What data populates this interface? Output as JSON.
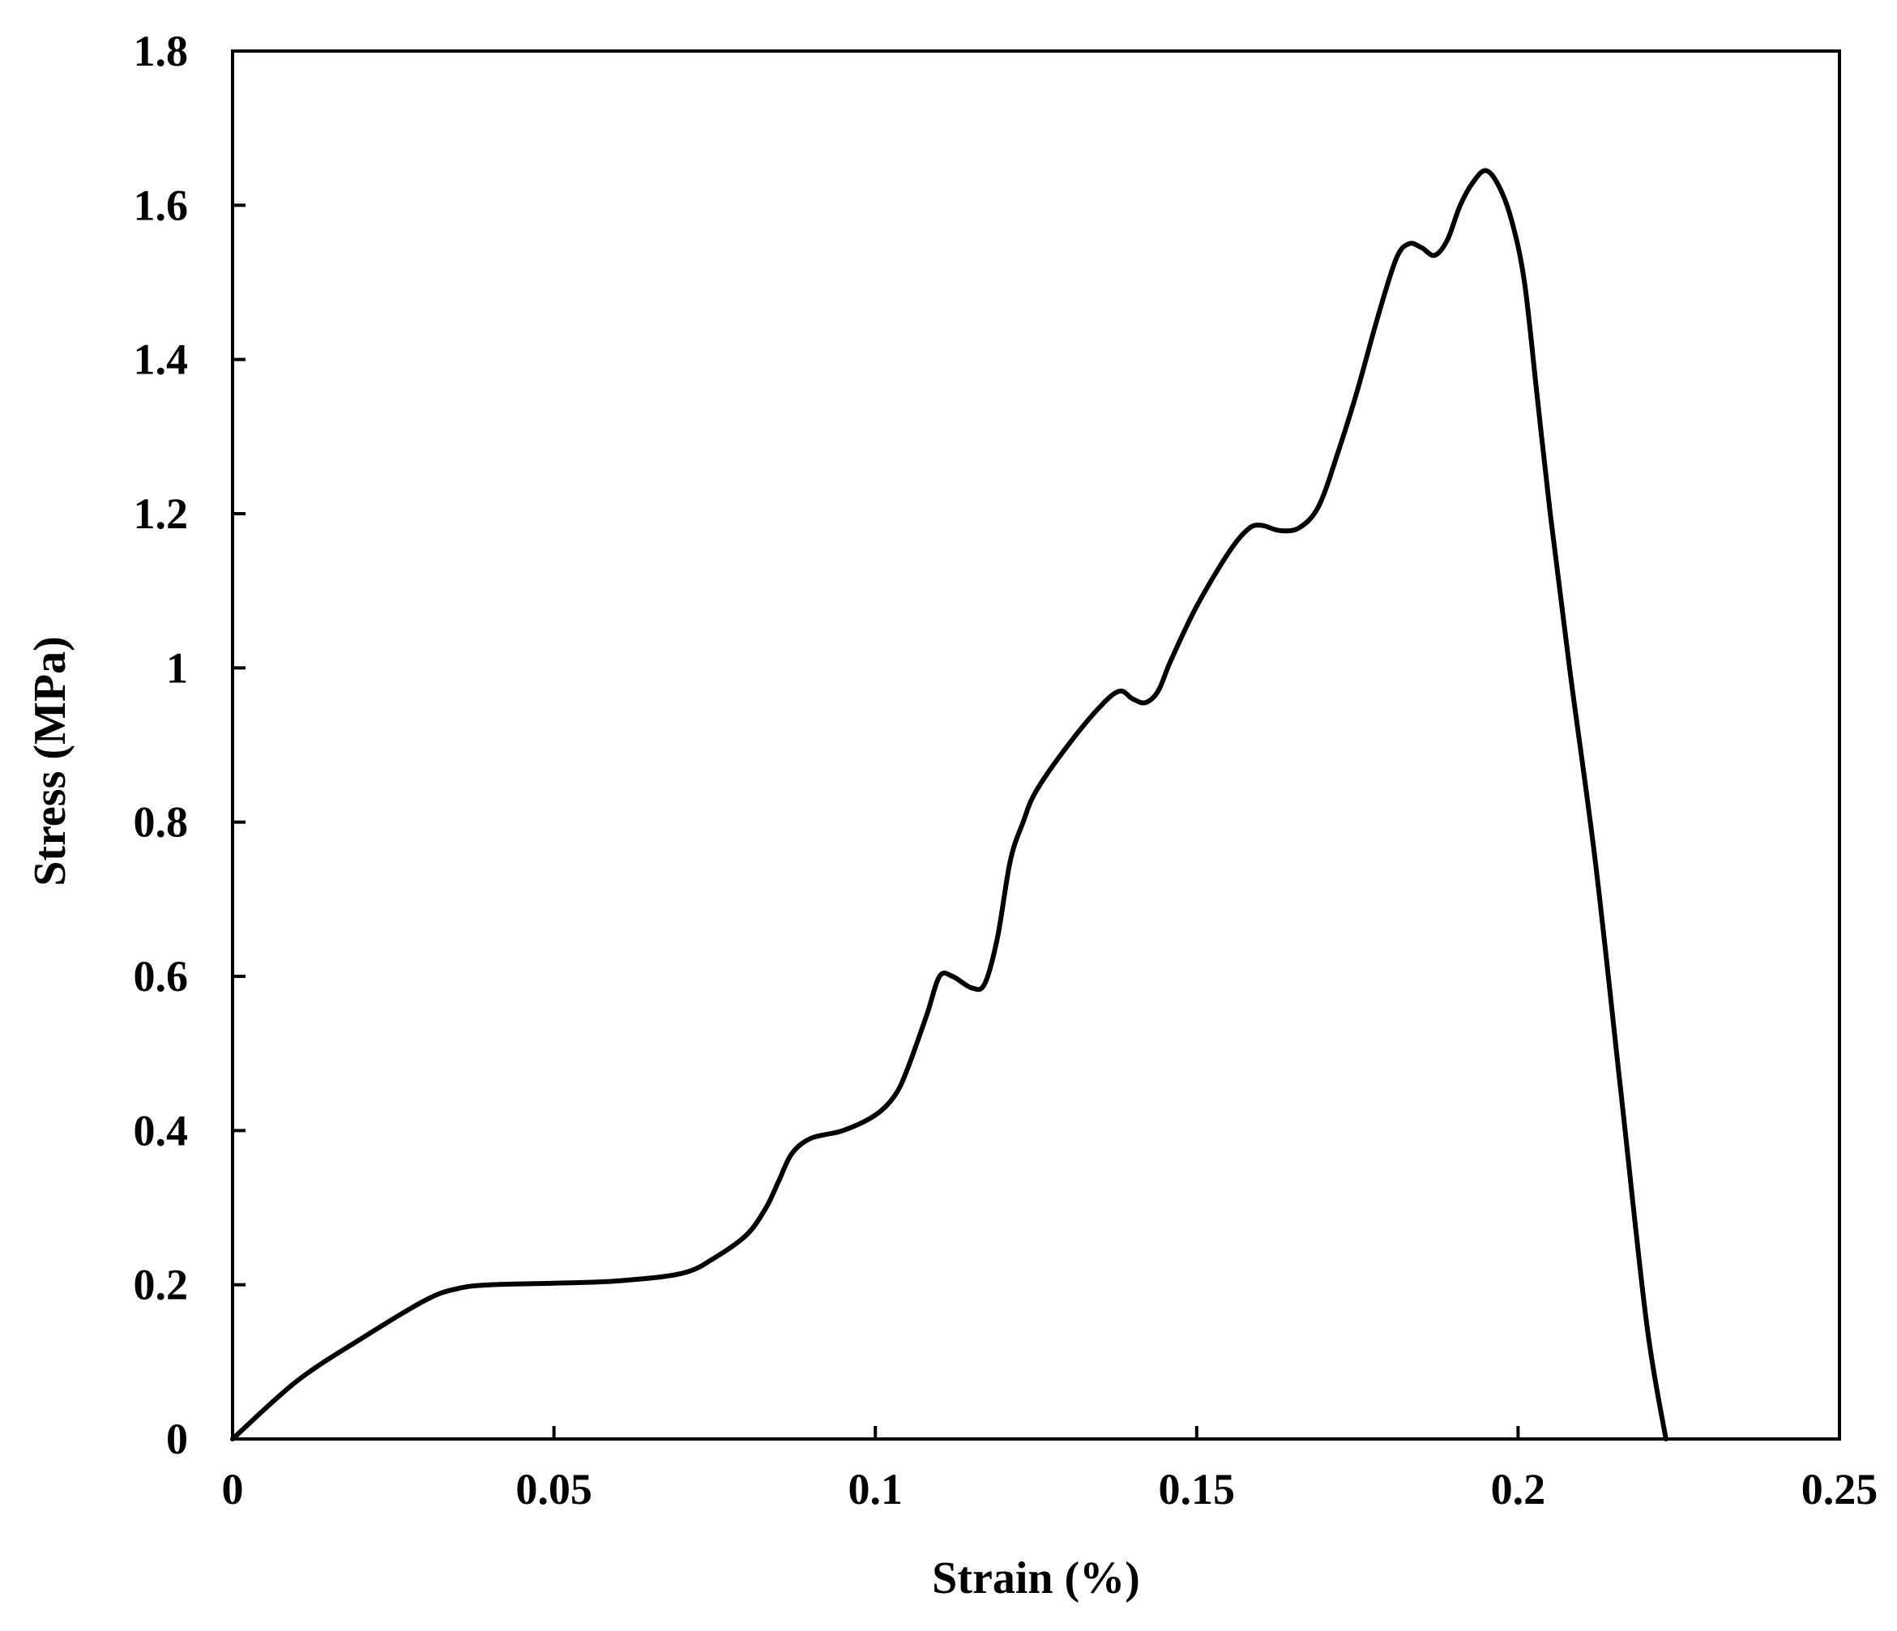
{
  "chart_data": {
    "type": "line",
    "title": "",
    "xlabel": "Strain (%)",
    "ylabel": "Stress (MPa)",
    "xlim": [
      0,
      0.25
    ],
    "ylim": [
      0,
      1.8
    ],
    "x_ticks": [
      "0",
      "0.05",
      "0.1",
      "0.15",
      "0.2",
      "0.25"
    ],
    "y_ticks": [
      "0",
      "0.2",
      "0.4",
      "0.6",
      "0.8",
      "1",
      "1.2",
      "1.4",
      "1.6",
      "1.8"
    ],
    "grid": false,
    "legend": "none",
    "line_color": "#000000",
    "series": [
      {
        "x": [
          0,
          0.01,
          0.02,
          0.03,
          0.035,
          0.04,
          0.05,
          0.06,
          0.07,
          0.075,
          0.08,
          0.083,
          0.085,
          0.087,
          0.09,
          0.095,
          0.1,
          0.103,
          0.105,
          0.108,
          0.11,
          0.112,
          0.115,
          0.117,
          0.119,
          0.121,
          0.123,
          0.125,
          0.13,
          0.135,
          0.138,
          0.14,
          0.142,
          0.144,
          0.146,
          0.15,
          0.155,
          0.158,
          0.16,
          0.163,
          0.166,
          0.169,
          0.172,
          0.175,
          0.178,
          0.181,
          0.183,
          0.185,
          0.187,
          0.189,
          0.191,
          0.193,
          0.195,
          0.197,
          0.199,
          0.201,
          0.203,
          0.205,
          0.208,
          0.212,
          0.216,
          0.22,
          0.223
        ],
        "y": [
          0,
          0.075,
          0.13,
          0.18,
          0.195,
          0.2,
          0.202,
          0.205,
          0.215,
          0.235,
          0.265,
          0.3,
          0.335,
          0.37,
          0.39,
          0.4,
          0.42,
          0.445,
          0.48,
          0.55,
          0.6,
          0.6,
          0.585,
          0.59,
          0.65,
          0.75,
          0.8,
          0.84,
          0.9,
          0.95,
          0.97,
          0.96,
          0.955,
          0.97,
          1.01,
          1.08,
          1.15,
          1.18,
          1.185,
          1.178,
          1.182,
          1.21,
          1.28,
          1.36,
          1.45,
          1.53,
          1.55,
          1.545,
          1.535,
          1.555,
          1.6,
          1.63,
          1.645,
          1.625,
          1.58,
          1.5,
          1.35,
          1.2,
          1.0,
          0.75,
          0.45,
          0.15,
          0
        ]
      }
    ]
  }
}
